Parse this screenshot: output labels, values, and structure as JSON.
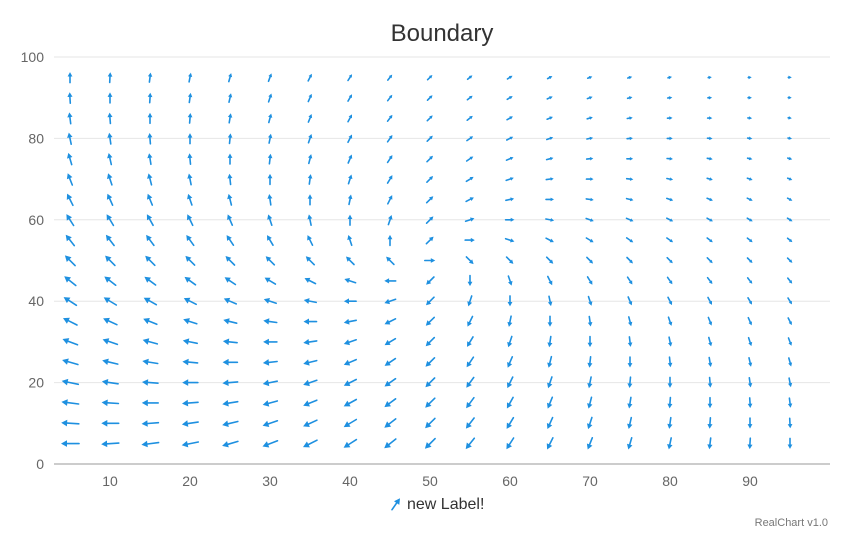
{
  "chart_data": {
    "type": "vector",
    "title": "Boundary",
    "xlabel": "",
    "ylabel": "",
    "xlim": [
      3,
      100
    ],
    "ylim": [
      0,
      100
    ],
    "x_ticks": [
      "10",
      "20",
      "30",
      "40",
      "50",
      "60",
      "70",
      "80",
      "90"
    ],
    "x_tick_values": [
      10,
      20,
      30,
      40,
      50,
      60,
      70,
      80,
      90
    ],
    "y_ticks": [
      "0",
      "20",
      "40",
      "60",
      "80",
      "100"
    ],
    "y_tick_values": [
      0,
      20,
      40,
      60,
      80,
      100
    ],
    "grid": "horizontal",
    "legend_position": "bottom",
    "series": [
      {
        "name": "new Label!",
        "color": "#1e90e0",
        "x": [
          5,
          10,
          15,
          20,
          25,
          30,
          35,
          40,
          45,
          50,
          55,
          60,
          65,
          70,
          75,
          80,
          85,
          90,
          95
        ],
        "y": [
          5,
          10,
          15,
          20,
          25,
          30,
          35,
          40,
          45,
          50,
          55,
          60,
          65,
          70,
          75,
          80,
          85,
          90,
          95
        ],
        "field": "angle = atan2(y - x, x + y - 100) deg; length decreases toward upper right"
      }
    ]
  },
  "credit": "RealChart v1.0"
}
